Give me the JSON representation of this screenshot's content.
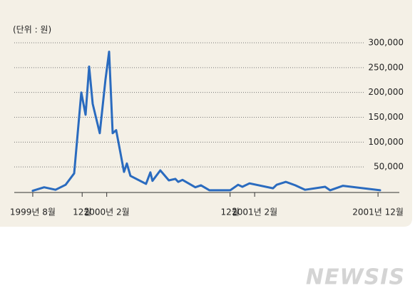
{
  "chart_data": {
    "type": "line",
    "unit_label": "(단위 : 원)",
    "x": [
      1999.583,
      1999.66,
      1999.737,
      1999.805,
      1999.863,
      1999.911,
      1999.94,
      1999.964,
      1999.988,
      2000.036,
      2000.075,
      2000.099,
      2000.123,
      2000.147,
      2000.171,
      2000.2,
      2000.219,
      2000.243,
      2000.349,
      2000.378,
      2000.392,
      2000.445,
      2000.503,
      2000.547,
      2000.566,
      2000.595,
      2000.682,
      2000.72,
      2000.778,
      2000.918,
      2000.971,
      2001.0,
      2001.048,
      2001.207,
      2001.232,
      2001.294,
      2001.357,
      2001.424,
      2001.559,
      2001.593,
      2001.68,
      2001.931
    ],
    "values": [
      2000,
      9000,
      4000,
      14000,
      37000,
      200000,
      155000,
      252000,
      177000,
      118000,
      227000,
      282000,
      118000,
      124000,
      86000,
      40000,
      57000,
      32000,
      16000,
      39000,
      22000,
      43000,
      23000,
      26000,
      20000,
      24000,
      9000,
      13000,
      3000,
      3000,
      14000,
      10000,
      17000,
      7000,
      14000,
      20000,
      13000,
      4000,
      10000,
      3000,
      12000,
      3000
    ],
    "color": "#2a6bbf",
    "xlim": [
      1999.458,
      2002.061
    ],
    "xticks": [
      {
        "value": 1999.583,
        "label": "1999년 8월"
      },
      {
        "value": 1999.917,
        "label": "12월"
      },
      {
        "value": 2000.083,
        "label": "2000년 2월"
      },
      {
        "value": 2000.917,
        "label": "12월"
      },
      {
        "value": 2001.083,
        "label": "2001년 2월"
      },
      {
        "value": 2001.917,
        "label": "2001년 12월"
      }
    ],
    "ylim": [
      0,
      300000
    ],
    "yticks": [
      {
        "value": 50000,
        "label": "50,000"
      },
      {
        "value": 100000,
        "label": "100,000"
      },
      {
        "value": 150000,
        "label": "150,000"
      },
      {
        "value": 200000,
        "label": "200,000"
      },
      {
        "value": 250000,
        "label": "250,000"
      },
      {
        "value": 300000,
        "label": "300,000"
      }
    ],
    "grid": true
  },
  "watermark": "NEWSIS"
}
